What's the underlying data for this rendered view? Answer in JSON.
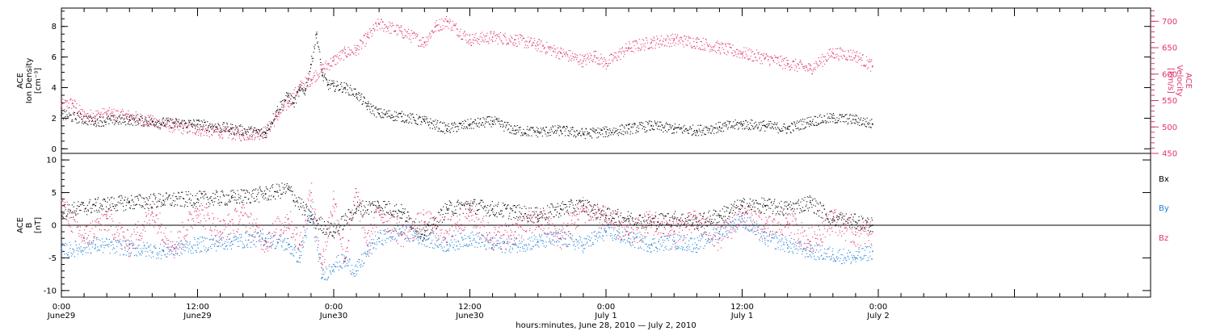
{
  "colors": {
    "axis": "#000000",
    "density": "#000000",
    "velocity": "#e0336a",
    "bx": "#000000",
    "by": "#1f7fd6",
    "bz": "#e0336a"
  },
  "chart_data": [
    {
      "type": "scatter",
      "panel": "top",
      "ylabel": [
        "ACE",
        "Ion Density",
        "[cm⁻³]"
      ],
      "y2label": [
        "ACE",
        "Velocity",
        "[km/s]"
      ],
      "ylim": [
        -0.3,
        9.2
      ],
      "yticks": [
        0,
        2,
        4,
        6,
        8
      ],
      "y2lim": [
        450,
        725
      ],
      "y2ticks": [
        450,
        500,
        550,
        600,
        650,
        700
      ],
      "series": [
        {
          "key": "density",
          "axis": "left",
          "x": [
            0,
            3,
            6,
            9,
            12,
            15,
            18,
            19,
            20,
            20.5,
            21,
            21.5,
            22,
            22.5,
            23,
            23.5,
            24,
            25,
            26,
            27,
            28,
            30,
            32,
            34,
            36,
            38,
            40,
            42,
            44,
            46,
            48,
            50,
            52,
            54,
            56,
            58,
            60,
            62,
            64,
            66,
            68,
            70,
            71.5
          ],
          "y": [
            2.2,
            1.8,
            1.9,
            1.7,
            1.6,
            1.3,
            1.0,
            2.5,
            3.5,
            3.0,
            3.8,
            3.8,
            5.5,
            7.5,
            4.8,
            4.2,
            4.1,
            4.0,
            3.6,
            2.8,
            2.3,
            2.1,
            1.8,
            1.3,
            1.6,
            1.8,
            1.2,
            1.1,
            1.2,
            1.0,
            1.1,
            1.3,
            1.5,
            1.3,
            1.2,
            1.4,
            1.6,
            1.5,
            1.3,
            1.8,
            2.0,
            1.9,
            1.6
          ]
        },
        {
          "key": "velocity",
          "axis": "right",
          "x": [
            0,
            1,
            2,
            4,
            6,
            8,
            10,
            12,
            14,
            16,
            18,
            19,
            20,
            21,
            22,
            23,
            24,
            25,
            26,
            27,
            28,
            30,
            32,
            33,
            34,
            36,
            38,
            40,
            42,
            44,
            46,
            47,
            48,
            50,
            52,
            54,
            56,
            58,
            60,
            62,
            64,
            66,
            68,
            70,
            71.5
          ],
          "y": [
            540,
            545,
            520,
            525,
            520,
            510,
            500,
            495,
            490,
            485,
            490,
            520,
            545,
            575,
            590,
            610,
            625,
            640,
            645,
            670,
            695,
            680,
            660,
            690,
            700,
            665,
            670,
            665,
            655,
            640,
            625,
            635,
            620,
            650,
            660,
            665,
            660,
            650,
            640,
            630,
            620,
            610,
            640,
            635,
            615
          ]
        }
      ]
    },
    {
      "type": "scatter",
      "panel": "bottom",
      "ylabel": [
        "ACE",
        "B",
        "[nT]"
      ],
      "ylim": [
        -11,
        11
      ],
      "yticks": [
        -10,
        -5,
        0,
        5,
        10
      ],
      "xlabel": "hours:minutes, June 28, 2010 — July  2, 2010",
      "xlim": [
        0,
        96
      ],
      "xticks": [
        {
          "x": 0,
          "top": "0:00",
          "bottom": "June29"
        },
        {
          "x": 12,
          "top": "12:00",
          "bottom": "June29"
        },
        {
          "x": 24,
          "top": "0:00",
          "bottom": "June30"
        },
        {
          "x": 36,
          "top": "12:00",
          "bottom": "June30"
        },
        {
          "x": 48,
          "top": "0:00",
          "bottom": "July 1"
        },
        {
          "x": 60,
          "top": "12:00",
          "bottom": "July 1"
        },
        {
          "x": 72,
          "top": "0:00",
          "bottom": "July 2"
        }
      ],
      "legend": [
        "Bx",
        "By",
        "Bz"
      ],
      "series": [
        {
          "key": "bx",
          "x": [
            0,
            3,
            6,
            9,
            12,
            15,
            18,
            20,
            22,
            24,
            26,
            28,
            30,
            32,
            34,
            36,
            38,
            40,
            42,
            44,
            46,
            48,
            50,
            52,
            54,
            56,
            58,
            60,
            62,
            64,
            66,
            68,
            70,
            71.5
          ],
          "y": [
            2.0,
            3.0,
            3.5,
            3.8,
            4.0,
            4.2,
            4.8,
            5.5,
            1.0,
            -1.0,
            2.5,
            3.0,
            2.0,
            -1.5,
            2.5,
            3.0,
            2.5,
            2.0,
            1.5,
            2.5,
            3.0,
            1.5,
            1.0,
            0.5,
            1.0,
            0.5,
            1.5,
            3.0,
            3.0,
            2.5,
            3.5,
            1.0,
            0.5,
            0.0
          ]
        },
        {
          "key": "by",
          "x": [
            0,
            3,
            6,
            9,
            12,
            15,
            18,
            20,
            21,
            22,
            23,
            24,
            25,
            26,
            27,
            28,
            30,
            32,
            34,
            36,
            38,
            40,
            42,
            44,
            46,
            48,
            50,
            52,
            54,
            56,
            58,
            60,
            62,
            64,
            66,
            68,
            70,
            71.5
          ],
          "y": [
            -4.0,
            -3.0,
            -3.5,
            -4.0,
            -3.0,
            -2.5,
            -2.0,
            -3.0,
            -5.0,
            2.0,
            -8.0,
            -6.0,
            -5.5,
            -7.0,
            -4.0,
            -2.0,
            -1.0,
            -2.0,
            -3.0,
            -2.0,
            -3.0,
            -3.0,
            -2.5,
            -2.0,
            -3.0,
            -1.0,
            -2.0,
            -3.0,
            -2.5,
            -3.0,
            -1.0,
            1.0,
            -2.0,
            -3.0,
            -4.0,
            -4.5,
            -5.0,
            -4.0
          ]
        },
        {
          "key": "bz",
          "x": [
            0,
            2,
            4,
            6,
            8,
            10,
            12,
            14,
            16,
            18,
            20,
            21,
            22,
            23,
            24,
            25,
            26,
            27,
            28,
            30,
            32,
            34,
            36,
            38,
            40,
            42,
            44,
            46,
            48,
            50,
            52,
            54,
            56,
            58,
            60,
            62,
            64,
            66,
            68,
            70,
            71.5
          ],
          "y": [
            3.0,
            -2.0,
            1.0,
            -3.0,
            2.0,
            -3.5,
            2.5,
            -1.0,
            1.5,
            -2.5,
            1.0,
            -3.0,
            5.0,
            -6.0,
            4.0,
            -5.0,
            5.0,
            -3.0,
            2.0,
            -1.5,
            0.5,
            -1.0,
            2.0,
            -2.0,
            -1.0,
            1.0,
            -2.0,
            2.5,
            1.0,
            -1.5,
            0.5,
            -1.0,
            0.5,
            -2.0,
            1.5,
            -0.5,
            0.5,
            -2.5,
            1.0,
            -1.5,
            -1.0
          ]
        }
      ]
    }
  ]
}
